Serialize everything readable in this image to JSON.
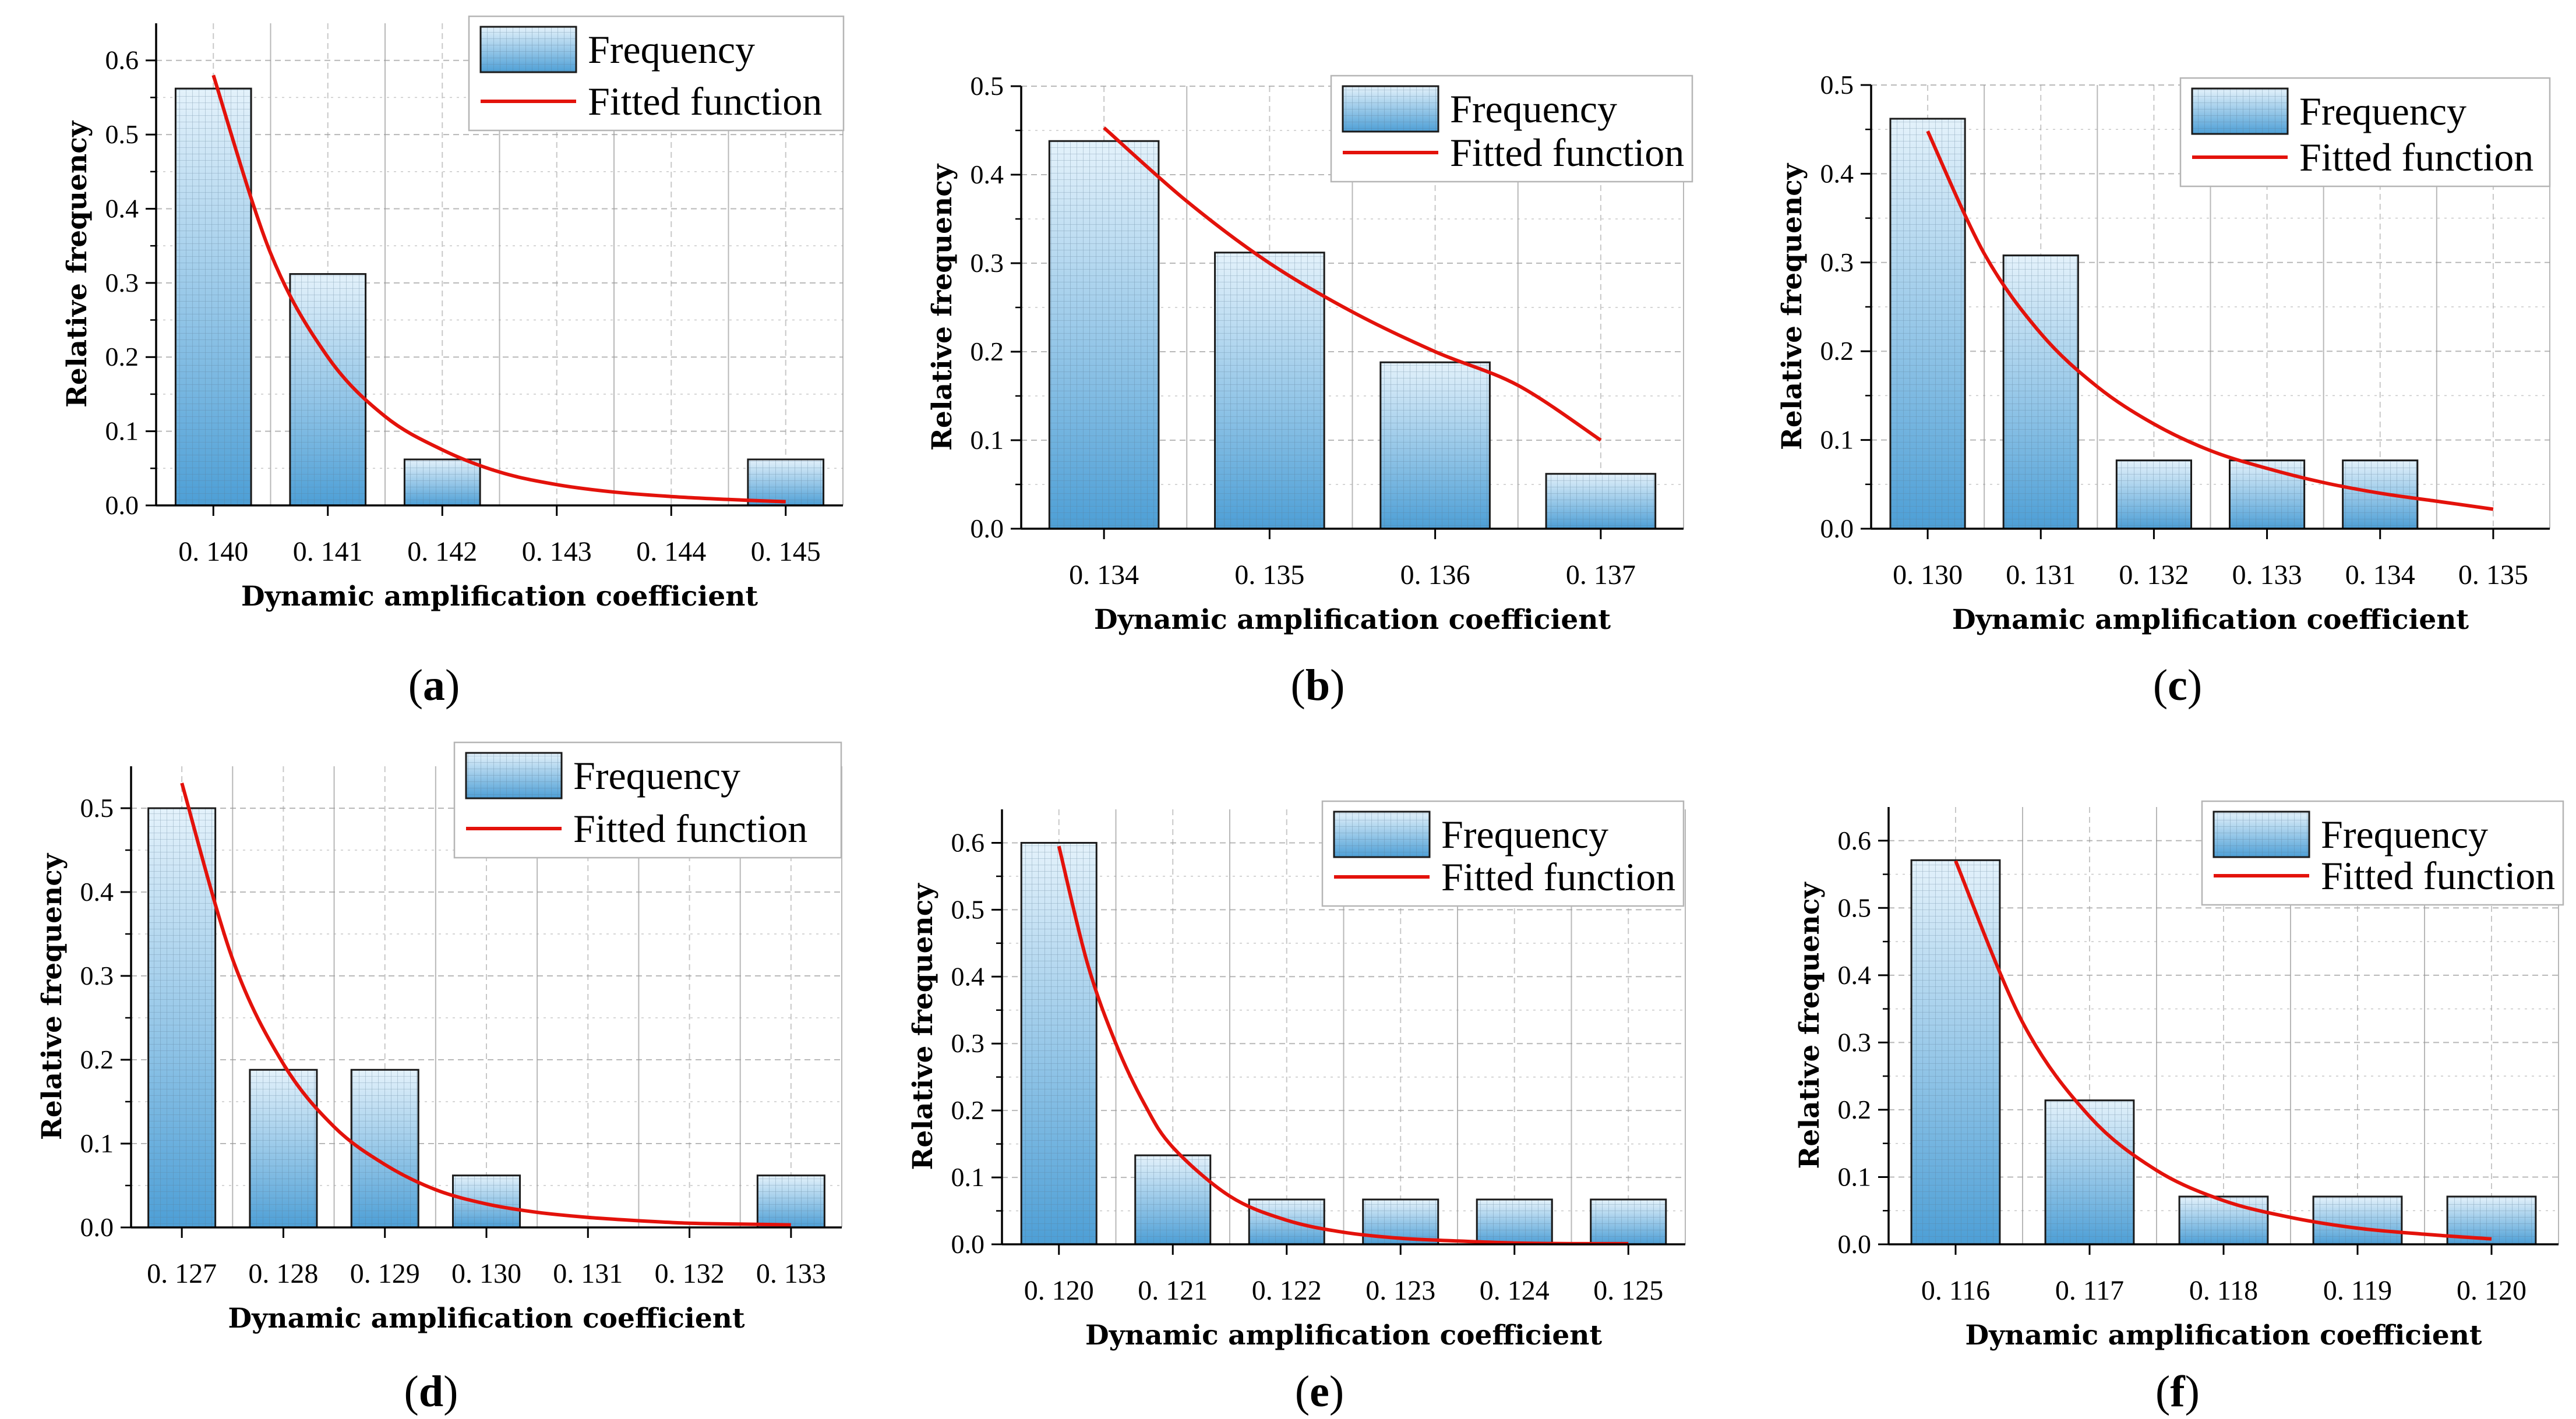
{
  "colors": {
    "bar_top": "#e4f2fb",
    "bar_bottom": "#4d9fd6",
    "bar_stroke": "#1a1a1a",
    "curve": "#e3120b",
    "grid": "#9a9a9a"
  },
  "chart_data": [
    {
      "panel_label": "a",
      "type": "bar",
      "categories": [
        "0. 140",
        "0. 141",
        "0. 142",
        "0. 143",
        "0. 144",
        "0. 145"
      ],
      "series": [
        {
          "name": "Frequency",
          "type": "bar",
          "values": [
            0.562,
            0.312,
            0.062,
            0,
            0,
            0.062
          ]
        },
        {
          "name": "Fitted function",
          "type": "line",
          "x": [
            0,
            0.5,
            1,
            1.5,
            2,
            2.5,
            3,
            3.5,
            4,
            4.5,
            5
          ],
          "y": [
            0.58,
            0.34,
            0.2,
            0.12,
            0.075,
            0.045,
            0.028,
            0.018,
            0.012,
            0.008,
            0.005
          ]
        }
      ],
      "xlabel": "Dynamic amplification coefficient",
      "ylabel": "Relative frequency",
      "yticks": [
        "0.0",
        "0.1",
        "0.2",
        "0.3",
        "0.4",
        "0.5",
        "0.6"
      ],
      "ylim": [
        0,
        0.65
      ],
      "legend": [
        "Frequency",
        "Fitted function"
      ],
      "legend_position": "top-right",
      "grid": true
    },
    {
      "panel_label": "b",
      "type": "bar",
      "categories": [
        "0. 134",
        "0. 135",
        "0. 136",
        "0. 137"
      ],
      "series": [
        {
          "name": "Frequency",
          "type": "bar",
          "values": [
            0.438,
            0.312,
            0.188,
            0.062
          ]
        },
        {
          "name": "Fitted function",
          "type": "line",
          "x": [
            0,
            0.5,
            1,
            1.5,
            2,
            2.5,
            3
          ],
          "y": [
            0.453,
            0.37,
            0.3,
            0.245,
            0.2,
            0.162,
            0.1
          ]
        }
      ],
      "xlabel": "Dynamic amplification coefficient",
      "ylabel": "Relative frequency",
      "yticks": [
        "0.0",
        "0.1",
        "0.2",
        "0.3",
        "0.4",
        "0.5"
      ],
      "ylim": [
        0,
        0.5
      ],
      "legend": [
        "Frequency",
        "Fitted function"
      ],
      "legend_position": "top-right",
      "grid": true
    },
    {
      "panel_label": "c",
      "type": "bar",
      "categories": [
        "0. 130",
        "0. 131",
        "0. 132",
        "0. 133",
        "0. 134",
        "0. 135"
      ],
      "series": [
        {
          "name": "Frequency",
          "type": "bar",
          "values": [
            0.462,
            0.308,
            0.077,
            0.077,
            0.077,
            0
          ]
        },
        {
          "name": "Fitted function",
          "type": "line",
          "x": [
            0,
            0.5,
            1,
            1.5,
            2,
            2.5,
            3,
            3.5,
            4,
            4.5,
            5
          ],
          "y": [
            0.448,
            0.31,
            0.22,
            0.16,
            0.118,
            0.088,
            0.068,
            0.052,
            0.04,
            0.031,
            0.022
          ]
        }
      ],
      "xlabel": "Dynamic amplification coefficient",
      "ylabel": "Relative frequency",
      "yticks": [
        "0.0",
        "0.1",
        "0.2",
        "0.3",
        "0.4",
        "0.5"
      ],
      "ylim": [
        0,
        0.5
      ],
      "legend": [
        "Frequency",
        "Fitted function"
      ],
      "legend_position": "top-right",
      "grid": true
    },
    {
      "panel_label": "d",
      "type": "bar",
      "categories": [
        "0. 127",
        "0. 128",
        "0. 129",
        "0. 130",
        "0. 131",
        "0. 132",
        "0. 133"
      ],
      "series": [
        {
          "name": "Frequency",
          "type": "bar",
          "values": [
            0.5,
            0.188,
            0.188,
            0.062,
            0,
            0,
            0.062
          ]
        },
        {
          "name": "Fitted function",
          "type": "line",
          "x": [
            0,
            0.5,
            1,
            1.5,
            2,
            2.5,
            3,
            3.5,
            4,
            4.5,
            5,
            5.5,
            6
          ],
          "y": [
            0.53,
            0.32,
            0.195,
            0.12,
            0.075,
            0.045,
            0.028,
            0.018,
            0.012,
            0.008,
            0.005,
            0.004,
            0.003
          ]
        }
      ],
      "xlabel": "Dynamic amplification coefficient",
      "ylabel": "Relative frequency",
      "yticks": [
        "0.0",
        "0.1",
        "0.2",
        "0.3",
        "0.4",
        "0.5"
      ],
      "ylim": [
        0,
        0.55
      ],
      "legend": [
        "Frequency",
        "Fitted function"
      ],
      "legend_position": "top-right",
      "grid": true
    },
    {
      "panel_label": "e",
      "type": "bar",
      "categories": [
        "0. 120",
        "0. 121",
        "0. 122",
        "0. 123",
        "0. 124",
        "0. 125"
      ],
      "series": [
        {
          "name": "Frequency",
          "type": "bar",
          "values": [
            0.6,
            0.133,
            0.067,
            0.067,
            0.067,
            0.067
          ]
        },
        {
          "name": "Fitted function",
          "type": "line",
          "x": [
            0,
            0.25,
            0.5,
            0.75,
            1,
            1.5,
            2,
            2.5,
            3,
            3.5,
            4,
            4.5,
            5
          ],
          "y": [
            0.595,
            0.42,
            0.3,
            0.21,
            0.145,
            0.072,
            0.036,
            0.018,
            0.009,
            0.005,
            0.002,
            0.001,
            0.001
          ]
        }
      ],
      "xlabel": "Dynamic amplification coefficient",
      "ylabel": "Relative frequency",
      "yticks": [
        "0.0",
        "0.1",
        "0.2",
        "0.3",
        "0.4",
        "0.5",
        "0.6"
      ],
      "ylim": [
        0,
        0.65
      ],
      "legend": [
        "Frequency",
        "Fitted function"
      ],
      "legend_position": "top-right",
      "grid": true
    },
    {
      "panel_label": "f",
      "type": "bar",
      "categories": [
        "0. 116",
        "0. 117",
        "0. 118",
        "0. 119",
        "0. 120"
      ],
      "series": [
        {
          "name": "Frequency",
          "type": "bar",
          "values": [
            0.571,
            0.214,
            0.071,
            0.071,
            0.071
          ]
        },
        {
          "name": "Fitted function",
          "type": "line",
          "x": [
            0,
            0.5,
            1,
            1.5,
            2,
            2.5,
            3,
            3.5,
            4
          ],
          "y": [
            0.57,
            0.33,
            0.19,
            0.11,
            0.065,
            0.04,
            0.024,
            0.015,
            0.008
          ]
        }
      ],
      "xlabel": "Dynamic amplification coefficient",
      "ylabel": "Relative frequency",
      "yticks": [
        "0.0",
        "0.1",
        "0.2",
        "0.3",
        "0.4",
        "0.5",
        "0.6"
      ],
      "ylim": [
        0,
        0.65
      ],
      "legend": [
        "Frequency",
        "Fitted function"
      ],
      "legend_position": "top-right",
      "grid": true
    }
  ]
}
